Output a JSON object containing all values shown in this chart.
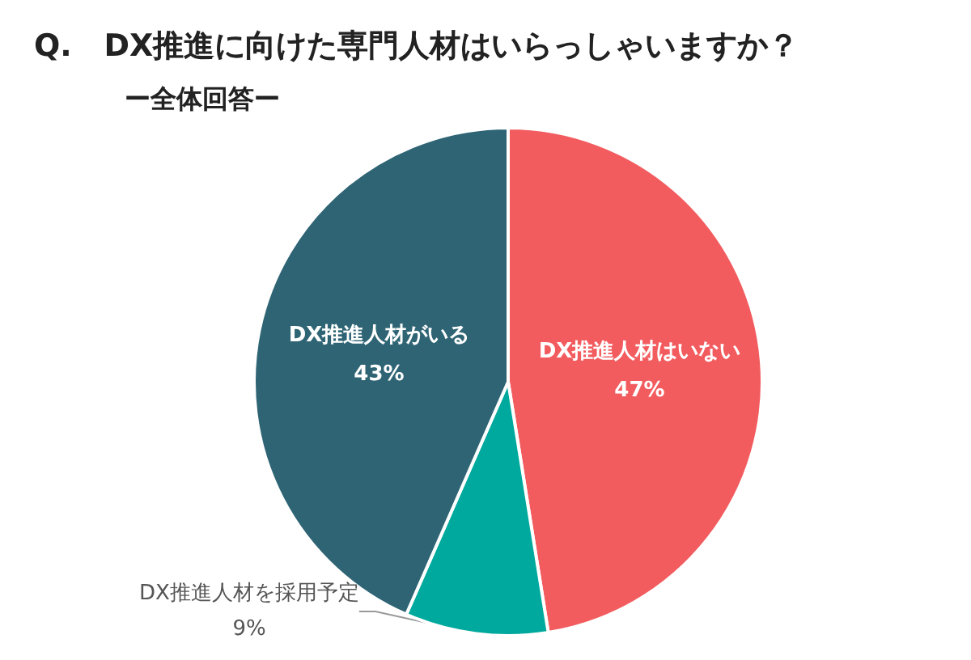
{
  "chart_data": {
    "type": "pie",
    "title": "Q.   DX推進に向けた専門人材はいらっしゃいますか？",
    "subtitle": "ー全体回答ー",
    "categories": [
      "DX推進人材はいない",
      "DX推進人材を採用予定",
      "DX推進人材がいる"
    ],
    "values": [
      47,
      9,
      43
    ],
    "colors": [
      "#f25c5f",
      "#00a99d",
      "#2e6474"
    ],
    "value_labels": [
      "47%",
      "9%",
      "43%"
    ],
    "legend": false
  }
}
